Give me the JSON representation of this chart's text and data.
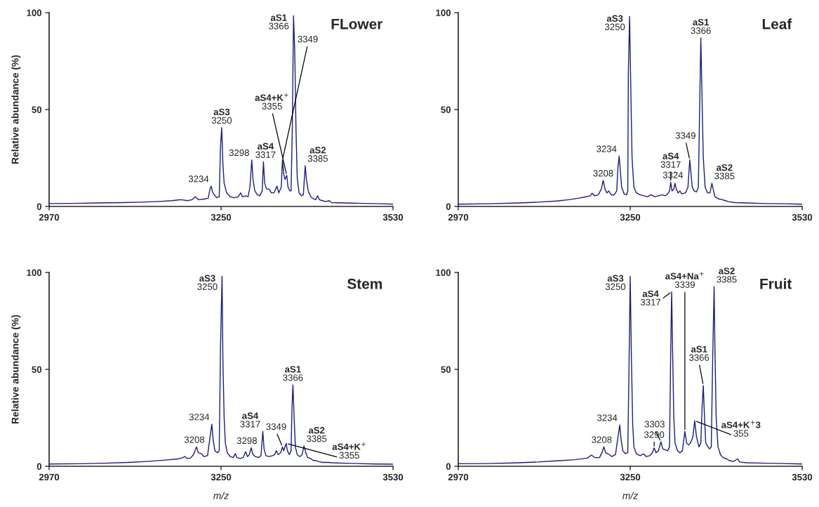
{
  "chart_data": [
    {
      "type": "line",
      "title": "FLower",
      "ylabel": "Relative abundance (%)",
      "color": "#1c1c7c",
      "xlim": [
        2970,
        3530
      ],
      "ylim": [
        0,
        100
      ],
      "xticks": [
        2970,
        3250,
        3530
      ],
      "yticks": [
        0,
        50,
        100
      ],
      "x": [
        2970,
        3010,
        3050,
        3090,
        3120,
        3150,
        3170,
        3185,
        3195,
        3203,
        3208,
        3213,
        3222,
        3229,
        3232,
        3234,
        3236,
        3239,
        3243,
        3247,
        3249,
        3251,
        3253,
        3255,
        3259,
        3265,
        3272,
        3278,
        3282,
        3285,
        3290,
        3294,
        3297,
        3300,
        3302,
        3305,
        3309,
        3313,
        3317,
        3319,
        3321,
        3324,
        3328,
        3332,
        3336,
        3341,
        3344,
        3348,
        3350,
        3352,
        3354,
        3357,
        3359,
        3362,
        3364,
        3366,
        3368,
        3370,
        3372,
        3374,
        3377,
        3381,
        3384,
        3387,
        3389,
        3392,
        3396,
        3400,
        3404,
        3407,
        3410,
        3415,
        3420,
        3426,
        3430,
        3450,
        3480,
        3510,
        3530
      ],
      "values": [
        1.5,
        1.6,
        1.8,
        2.0,
        2.2,
        2.6,
        3.0,
        3.5,
        3.0,
        3.5,
        5.0,
        3.5,
        3.8,
        4.2,
        9,
        10.5,
        7.5,
        6,
        4.5,
        5,
        30,
        40.7,
        22,
        12,
        7,
        5,
        4.5,
        5,
        7,
        5,
        5.5,
        5,
        10,
        24,
        14,
        8,
        6,
        5.5,
        8,
        23,
        12,
        9,
        9,
        7,
        7,
        10.5,
        7,
        10,
        24,
        17,
        14,
        16,
        10,
        8,
        8,
        40,
        98.4,
        80,
        40,
        15,
        7,
        5.5,
        6,
        21,
        14,
        8,
        5,
        4,
        3.5,
        5.5,
        3.5,
        3,
        2.5,
        3,
        2,
        1.8,
        1.6,
        1.4,
        1.2
      ],
      "annotations": [
        {
          "text": "3234",
          "x": 3234,
          "y": 10.5
        },
        {
          "text": "aS3\n3250",
          "x": 3251,
          "y": 40.7
        },
        {
          "text": "3298",
          "x": 3300,
          "y": 24
        },
        {
          "text": "aS4\n3317",
          "x": 3319,
          "y": 23
        },
        {
          "text": "3349",
          "x": 3350,
          "y": 24
        },
        {
          "text": "aS4+K$^{+}$\n3355",
          "x": 3357,
          "y": 16
        },
        {
          "text": "aS2\n3385",
          "x": 3387,
          "y": 21
        },
        {
          "text": "aS1\n3366",
          "x": 3368,
          "y": 98.4
        }
      ]
    },
    {
      "type": "line",
      "title": "Leaf",
      "color": "#1c1c7c",
      "xlim": [
        2970,
        3530
      ],
      "ylim": [
        0,
        100
      ],
      "xticks": [
        2970,
        3250,
        3530
      ],
      "yticks": [
        0,
        50,
        100
      ],
      "x": [
        2970,
        3020,
        3070,
        3100,
        3130,
        3150,
        3165,
        3175,
        3185,
        3188,
        3192,
        3198,
        3203,
        3206,
        3209,
        3212,
        3215,
        3219,
        3224,
        3228,
        3230,
        3232,
        3234,
        3236,
        3240,
        3244,
        3246,
        3247,
        3249,
        3251,
        3253,
        3256,
        3260,
        3266,
        3272,
        3278,
        3284,
        3290,
        3296,
        3302,
        3307,
        3311,
        3314,
        3316,
        3318,
        3321,
        3323,
        3325,
        3328,
        3331,
        3334,
        3340,
        3344,
        3347,
        3349,
        3351,
        3354,
        3358,
        3361,
        3363,
        3365,
        3367,
        3369,
        3372,
        3376,
        3380,
        3383,
        3385,
        3388,
        3393,
        3400,
        3405,
        3410,
        3420,
        3440,
        3470,
        3500,
        3530
      ],
      "values": [
        1.2,
        1.4,
        1.8,
        2.2,
        2.8,
        3.5,
        4.2,
        4.8,
        5.5,
        6.8,
        5.5,
        6,
        9,
        13.4,
        9,
        7,
        8,
        6,
        6,
        8,
        20,
        26,
        18,
        10,
        6.5,
        6,
        8,
        70,
        98,
        60,
        25,
        10,
        7,
        6,
        5.5,
        5,
        6,
        5,
        5.5,
        6,
        5.5,
        6.5,
        8,
        12.5,
        8,
        9,
        12,
        9,
        7,
        8,
        6.5,
        7,
        10,
        24,
        17,
        10,
        8,
        7.5,
        10,
        50,
        87,
        55,
        25,
        10,
        7,
        7,
        12,
        9,
        5,
        4,
        3.5,
        3,
        2.5,
        2,
        1.8,
        1.5,
        1.4,
        1.2
      ],
      "annotations": [
        {
          "text": "3208",
          "x": 3206,
          "y": 13.4
        },
        {
          "text": "3234",
          "x": 3232,
          "y": 26
        },
        {
          "text": "aS4\n3317",
          "x": 3316,
          "y": 12.5
        },
        {
          "text": "3324",
          "x": 3323,
          "y": 12
        },
        {
          "text": "3349",
          "x": 3347,
          "y": 24
        },
        {
          "text": "aS2\n3385",
          "x": 3383,
          "y": 12
        },
        {
          "text": "aS3\n3250",
          "x": 3249,
          "y": 98
        },
        {
          "text": "aS1\n3366",
          "x": 3365,
          "y": 87
        }
      ]
    },
    {
      "type": "line",
      "title": "Stem",
      "ylabel": "Relative abundance (%)",
      "xlabel": "m/z",
      "color": "#1c1c7c",
      "xlim": [
        2970,
        3530
      ],
      "ylim": [
        0,
        100
      ],
      "xticks": [
        2970,
        3250,
        3530
      ],
      "yticks": [
        0,
        50,
        100
      ],
      "x": [
        2970,
        3020,
        3060,
        3100,
        3130,
        3160,
        3180,
        3188,
        3191,
        3195,
        3200,
        3205,
        3210,
        3213,
        3218,
        3222,
        3228,
        3232,
        3235,
        3237,
        3240,
        3244,
        3247,
        3249,
        3251.6,
        3253,
        3255,
        3257,
        3260,
        3265,
        3270,
        3273,
        3276,
        3281,
        3286,
        3290,
        3293,
        3296,
        3299,
        3302,
        3306,
        3311,
        3315,
        3318,
        3320,
        3323,
        3328,
        3334,
        3337,
        3340,
        3343,
        3347,
        3350,
        3352,
        3356,
        3358,
        3361,
        3364,
        3365.5,
        3367,
        3369,
        3371,
        3374,
        3378,
        3382,
        3385,
        3388,
        3391,
        3396,
        3400,
        3404,
        3408,
        3415,
        3425,
        3430,
        3460,
        3500,
        3530
      ],
      "values": [
        1.2,
        1.3,
        1.6,
        2.0,
        2.5,
        3.2,
        3.8,
        4.5,
        5,
        4,
        4.2,
        6,
        10,
        7,
        6.5,
        5,
        5.5,
        15,
        21.7,
        14,
        8,
        7,
        8,
        60,
        98,
        55,
        25,
        12,
        7,
        5,
        4.5,
        6.5,
        4.5,
        4,
        4.5,
        7.5,
        5,
        6,
        9.5,
        6,
        5,
        4.5,
        5.5,
        18,
        9,
        5.5,
        5,
        5.5,
        6,
        8,
        6,
        7,
        10,
        8,
        11.8,
        8,
        6,
        8,
        30,
        42,
        25,
        10,
        6,
        5,
        6,
        10.5,
        7,
        4.5,
        4,
        3,
        3,
        2.5,
        2,
        2,
        1.8,
        1.5,
        1.2,
        1.1
      ],
      "annotations": [
        {
          "text": "3208",
          "x": 3210,
          "y": 10
        },
        {
          "text": "3234",
          "x": 3235,
          "y": 21.7
        },
        {
          "text": "3298",
          "x": 3299,
          "y": 9.5
        },
        {
          "text": "aS4\n3317",
          "x": 3318,
          "y": 18
        },
        {
          "text": "3349",
          "x": 3350,
          "y": 10
        },
        {
          "text": "aS4+K$^{+}$\n3355",
          "x": 3356,
          "y": 11.8
        },
        {
          "text": "aS2\n3385",
          "x": 3385,
          "y": 10.5
        },
        {
          "text": "aS1\n3366",
          "x": 3367,
          "y": 42
        },
        {
          "text": "aS3\n3250",
          "x": 3251.6,
          "y": 98
        }
      ]
    },
    {
      "type": "line",
      "title": "Fruit",
      "xlabel": "m/z",
      "color": "#1c1c7c",
      "xlim": [
        2970,
        3530
      ],
      "ylim": [
        0,
        100
      ],
      "xticks": [
        2970,
        3250,
        3530
      ],
      "yticks": [
        0,
        50,
        100
      ],
      "x": [
        2970,
        3020,
        3060,
        3100,
        3130,
        3160,
        3180,
        3187,
        3192,
        3200,
        3204,
        3207,
        3210,
        3216,
        3220,
        3226,
        3230,
        3233,
        3235,
        3238,
        3242,
        3246,
        3248,
        3250,
        3252,
        3254,
        3256,
        3260,
        3266,
        3272,
        3276,
        3282,
        3286,
        3289,
        3292,
        3296,
        3300,
        3303,
        3307,
        3311,
        3314,
        3316,
        3317.5,
        3319,
        3321,
        3323,
        3327,
        3331,
        3335,
        3339,
        3342,
        3345,
        3348,
        3352,
        3355,
        3358,
        3362,
        3365,
        3367,
        3369,
        3371,
        3373,
        3376,
        3379,
        3382,
        3384,
        3386.6,
        3388,
        3390,
        3393,
        3397,
        3401,
        3407,
        3411,
        3418,
        3425,
        3428,
        3440,
        3470,
        3500,
        3530
      ],
      "values": [
        1.3,
        1.4,
        1.7,
        2.2,
        2.8,
        3.4,
        4.2,
        5.8,
        4.5,
        4.5,
        7,
        10,
        7,
        6,
        5,
        6,
        15,
        21.3,
        14,
        8,
        6.5,
        7,
        50,
        98,
        55,
        22,
        10,
        6.5,
        5.5,
        6.4,
        5,
        5.5,
        7,
        9.5,
        7,
        8,
        12.6,
        9,
        8.5,
        8,
        10,
        60,
        90,
        60,
        25,
        12,
        8,
        7,
        8,
        18,
        12,
        11,
        12,
        15,
        23.5,
        15,
        10,
        12,
        30,
        41.7,
        25,
        12,
        10.5,
        9,
        10,
        50,
        92.7,
        60,
        25,
        10,
        6,
        4.5,
        3.8,
        3,
        2.5,
        3.8,
        2.2,
        1.8,
        1.6,
        1.4,
        1.2
      ],
      "annotations": [
        {
          "text": "3208",
          "x": 3207,
          "y": 10
        },
        {
          "text": "3234",
          "x": 3233,
          "y": 21.3
        },
        {
          "text": "3290",
          "x": 3289,
          "y": 9.5
        },
        {
          "text": "3303",
          "x": 3300,
          "y": 12.6
        },
        {
          "text": "aS4+Na$^{+}$\n3339",
          "x": 3339,
          "y": 18
        },
        {
          "text": "aS4+K$^{+}$3\n355",
          "x": 3355,
          "y": 23.5
        },
        {
          "text": "aS1\n3366",
          "x": 3369,
          "y": 41.7
        },
        {
          "text": "aS3\n3250",
          "x": 3250,
          "y": 98
        },
        {
          "text": "aS4\n3317",
          "x": 3317.5,
          "y": 90
        },
        {
          "text": "aS2\n3385",
          "x": 3386.6,
          "y": 92.7
        }
      ]
    }
  ]
}
